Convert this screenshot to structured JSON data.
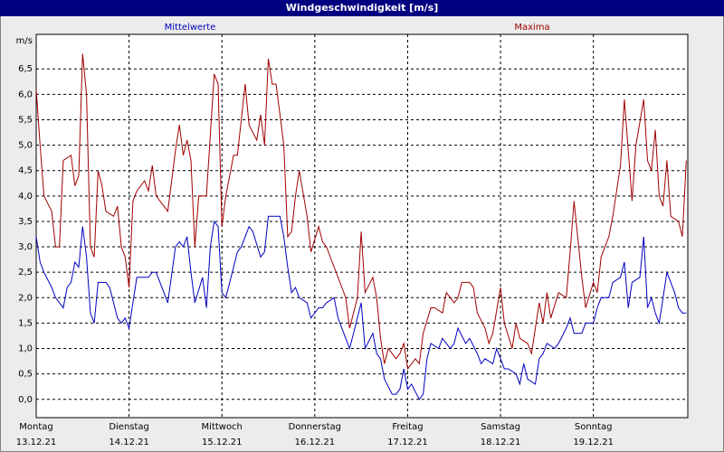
{
  "chart_data": {
    "type": "line",
    "title": "Windgeschwindigkeit [m/s]",
    "y_label": "m/s",
    "xlim": [
      0,
      168.4
    ],
    "ylim": [
      -0.36,
      7.18
    ],
    "xticks": [
      {
        "value": 0,
        "label": "Montag"
      },
      {
        "value": 24,
        "label": "Dienstag"
      },
      {
        "value": 48,
        "label": "Mittwoch"
      },
      {
        "value": 72,
        "label": "Donnerstag"
      },
      {
        "value": 96,
        "label": "Freitag"
      },
      {
        "value": 120,
        "label": "Samstag"
      },
      {
        "value": 144,
        "label": "Sonntag"
      }
    ],
    "xtick_dates": [
      "13.12.21",
      "14.12.21",
      "15.12.21",
      "16.12.21",
      "17.12.21",
      "18.12.21",
      "19.12.21"
    ],
    "yticks": [
      {
        "value": 0,
        "label": "0,0"
      },
      {
        "value": 0.5,
        "label": "0,5"
      },
      {
        "value": 1,
        "label": "1,0"
      },
      {
        "value": 1.5,
        "label": "1,5"
      },
      {
        "value": 2,
        "label": "2,0"
      },
      {
        "value": 2.5,
        "label": "2,5"
      },
      {
        "value": 3,
        "label": "3,0"
      },
      {
        "value": 3.5,
        "label": "3,5"
      },
      {
        "value": 4,
        "label": "4,0"
      },
      {
        "value": 4.5,
        "label": "4,5"
      },
      {
        "value": 5,
        "label": "5,0"
      },
      {
        "value": 5.5,
        "label": "5,5"
      },
      {
        "value": 6,
        "label": "6,0"
      },
      {
        "value": 6.5,
        "label": "6,5"
      }
    ],
    "grid": true,
    "series": [
      {
        "name": "Mittelwerte",
        "color": "#0000c0",
        "x": [
          0,
          1,
          2,
          4,
          5,
          7,
          8,
          9,
          10,
          11,
          12,
          13,
          14,
          15,
          16,
          18,
          19,
          21,
          22,
          23,
          24,
          26,
          28,
          29,
          30,
          31,
          33,
          34,
          36,
          37,
          38,
          39,
          40,
          41,
          43,
          44,
          45,
          46,
          47,
          48,
          49,
          51,
          52,
          53,
          55,
          56,
          58,
          59,
          60,
          62,
          63,
          64,
          65,
          66,
          67,
          68,
          70,
          71,
          73,
          74,
          75,
          77,
          78,
          80,
          81,
          82,
          84,
          85,
          87,
          88,
          89,
          90,
          92,
          93,
          94,
          95,
          96,
          97,
          99,
          100,
          101,
          102,
          104,
          105,
          107,
          108,
          109,
          111,
          112,
          114,
          115,
          116,
          118,
          119,
          121,
          122,
          124,
          125,
          126,
          127,
          129,
          130,
          131,
          132,
          134,
          135,
          137,
          138,
          139,
          141,
          142,
          144,
          145,
          146,
          148,
          149,
          151,
          152,
          153,
          154,
          156,
          157,
          158,
          159,
          160,
          161,
          163,
          165,
          166,
          167,
          168
        ],
        "values": [
          3.2,
          2.7,
          2.5,
          2.2,
          2.0,
          1.8,
          2.2,
          2.3,
          2.7,
          2.6,
          3.4,
          2.8,
          1.7,
          1.5,
          2.3,
          2.3,
          2.2,
          1.6,
          1.5,
          1.6,
          1.4,
          2.4,
          2.4,
          2.4,
          2.5,
          2.5,
          2.1,
          1.9,
          3.0,
          3.1,
          3.0,
          3.2,
          2.5,
          1.9,
          2.4,
          1.8,
          3.0,
          3.5,
          3.4,
          2.1,
          2.0,
          2.6,
          2.9,
          3.0,
          3.4,
          3.3,
          2.8,
          2.9,
          3.6,
          3.6,
          3.6,
          3.2,
          2.6,
          2.1,
          2.2,
          2.0,
          1.9,
          1.6,
          1.8,
          1.8,
          1.9,
          2.0,
          1.6,
          1.2,
          1.0,
          1.3,
          1.9,
          1.0,
          1.3,
          0.9,
          0.8,
          0.4,
          0.1,
          0.1,
          0.2,
          0.6,
          0.2,
          0.3,
          0.0,
          0.1,
          0.8,
          1.1,
          1.0,
          1.2,
          1.0,
          1.1,
          1.4,
          1.1,
          1.2,
          0.9,
          0.7,
          0.8,
          0.7,
          1.0,
          0.6,
          0.6,
          0.5,
          0.3,
          0.7,
          0.4,
          0.3,
          0.8,
          0.9,
          1.1,
          1.0,
          1.1,
          1.4,
          1.6,
          1.3,
          1.3,
          1.5,
          1.5,
          1.8,
          2.0,
          2.0,
          2.3,
          2.4,
          2.7,
          1.8,
          2.3,
          2.4,
          3.2,
          1.8,
          2.0,
          1.7,
          1.5,
          2.5,
          2.1,
          1.8,
          1.7,
          1.7
        ]
      },
      {
        "name": "Maxima",
        "color": "#a00000",
        "x": [
          0,
          1,
          2,
          4,
          5,
          6,
          7,
          9,
          10,
          11,
          12,
          13,
          14,
          15,
          16,
          17,
          18,
          20,
          21,
          22,
          23,
          24,
          25,
          26,
          28,
          29,
          30,
          31,
          32,
          34,
          36,
          37,
          38,
          39,
          40,
          41,
          42,
          44,
          46,
          47,
          48,
          49,
          51,
          52,
          54,
          55,
          57,
          58,
          59,
          60,
          61,
          62,
          64,
          65,
          66,
          67,
          68,
          70,
          71,
          73,
          74,
          75,
          77,
          79,
          80,
          81,
          83,
          84,
          85,
          87,
          88,
          89,
          90,
          91,
          93,
          94,
          95,
          96,
          98,
          99,
          100,
          102,
          103,
          105,
          106,
          108,
          109,
          110,
          112,
          113,
          114,
          116,
          117,
          118,
          120,
          121,
          123,
          124,
          125,
          127,
          128,
          130,
          131,
          132,
          133,
          135,
          137,
          138,
          139,
          141,
          142,
          144,
          145,
          146,
          148,
          149,
          151,
          152,
          153,
          154,
          155,
          157,
          158,
          159,
          160,
          161,
          162,
          163,
          164,
          166,
          167,
          168
        ],
        "values": [
          6.1,
          5.0,
          4.0,
          3.7,
          3.0,
          3.0,
          4.7,
          4.8,
          4.2,
          4.4,
          6.8,
          6.0,
          3.0,
          2.8,
          4.5,
          4.2,
          3.7,
          3.6,
          3.8,
          3.0,
          2.8,
          2.2,
          3.9,
          4.1,
          4.3,
          4.1,
          4.6,
          4.0,
          3.9,
          3.7,
          4.9,
          5.4,
          4.8,
          5.1,
          4.7,
          3.0,
          4.0,
          4.0,
          6.4,
          6.2,
          3.4,
          4.0,
          4.8,
          4.8,
          6.2,
          5.4,
          5.1,
          5.6,
          5.0,
          6.7,
          6.2,
          6.2,
          5.0,
          3.2,
          3.3,
          4.0,
          4.5,
          3.6,
          2.9,
          3.4,
          3.1,
          3.0,
          2.6,
          2.2,
          2.0,
          1.4,
          2.0,
          3.3,
          2.1,
          2.4,
          2.0,
          1.2,
          0.7,
          1.0,
          0.8,
          0.9,
          1.1,
          0.6,
          0.8,
          0.7,
          1.3,
          1.8,
          1.8,
          1.7,
          2.1,
          1.9,
          2.0,
          2.3,
          2.3,
          2.2,
          1.7,
          1.4,
          1.1,
          1.3,
          2.2,
          1.5,
          1.0,
          1.5,
          1.2,
          1.1,
          0.9,
          1.9,
          1.5,
          2.1,
          1.6,
          2.1,
          2.0,
          2.9,
          3.9,
          2.4,
          1.8,
          2.3,
          2.1,
          2.8,
          3.2,
          3.6,
          4.6,
          5.9,
          4.9,
          3.9,
          5.0,
          5.9,
          4.7,
          4.5,
          5.3,
          4.0,
          3.8,
          4.7,
          3.6,
          3.5,
          3.2,
          4.7
        ]
      }
    ]
  }
}
